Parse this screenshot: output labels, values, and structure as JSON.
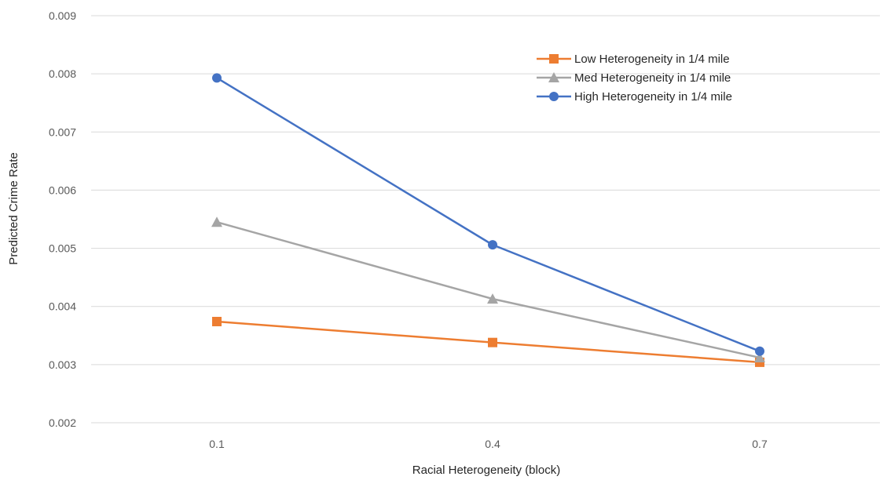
{
  "chart_data": {
    "type": "line",
    "title": "",
    "xlabel": "Racial Heterogeneity (block)",
    "ylabel": "Predicted Crime Rate",
    "categories": [
      "0.1",
      "0.4",
      "0.7"
    ],
    "ylim": [
      0.002,
      0.009
    ],
    "yticks": [
      0.002,
      0.003,
      0.004,
      0.005,
      0.006,
      0.007,
      0.008,
      0.009
    ],
    "ytick_labels": [
      "0.002",
      "0.003",
      "0.004",
      "0.005",
      "0.006",
      "0.007",
      "0.008",
      "0.009"
    ],
    "grid": true,
    "legend_position": "top-right",
    "series": [
      {
        "name": "Low Heterogeneity in 1/4 mile",
        "values": [
          0.00374,
          0.00338,
          0.00304
        ],
        "color": "#ED7D31",
        "marker": "square"
      },
      {
        "name": "Med Heterogeneity in 1/4 mile",
        "values": [
          0.00545,
          0.00413,
          0.00312
        ],
        "color": "#A5A5A5",
        "marker": "triangle"
      },
      {
        "name": "High Heterogeneity in 1/4 mile",
        "values": [
          0.00793,
          0.00506,
          0.00323
        ],
        "color": "#4472C4",
        "marker": "circle"
      }
    ]
  }
}
